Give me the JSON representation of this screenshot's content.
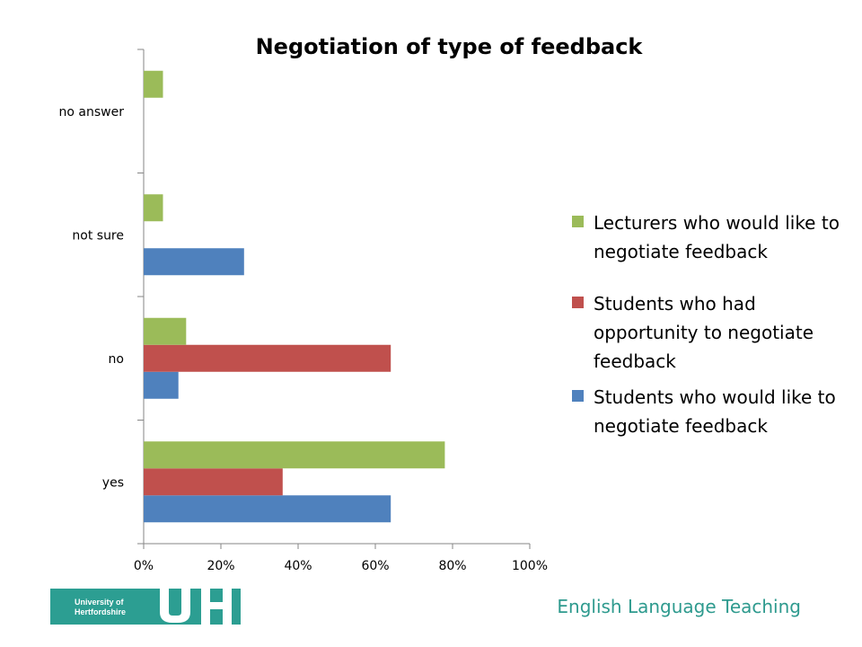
{
  "chart_data": {
    "type": "bar",
    "orientation": "horizontal",
    "title": "Negotiation of type of feedback",
    "categories": [
      "yes",
      "no",
      "not sure",
      "no answer"
    ],
    "series": [
      {
        "name": "Students who would like to negotiate feedback",
        "color": "#4f81bd",
        "values": [
          64,
          9,
          26,
          0
        ]
      },
      {
        "name": "Students who had opportunity to negotiate feedback",
        "color": "#c0504d",
        "values": [
          36,
          64,
          0,
          0
        ]
      },
      {
        "name": "Lecturers who would like to negotiate feedback",
        "color": "#9bbb59",
        "values": [
          78,
          11,
          5,
          5
        ]
      }
    ],
    "x_ticks": [
      "0%",
      "20%",
      "40%",
      "60%",
      "80%",
      "100%"
    ],
    "xlim": [
      0,
      100
    ],
    "grid": false,
    "legend_position": "right"
  },
  "legend": {
    "lecturers": "Lecturers who would like to negotiate feedback",
    "students_had": "Students who had opportunity to negotiate feedback",
    "students_like": "Students who would like to negotiate feedback"
  },
  "footer": {
    "logo_line1": "University of",
    "logo_line2": "Hertfordshire",
    "logo_mark": "UH",
    "department": "English Language Teaching"
  }
}
